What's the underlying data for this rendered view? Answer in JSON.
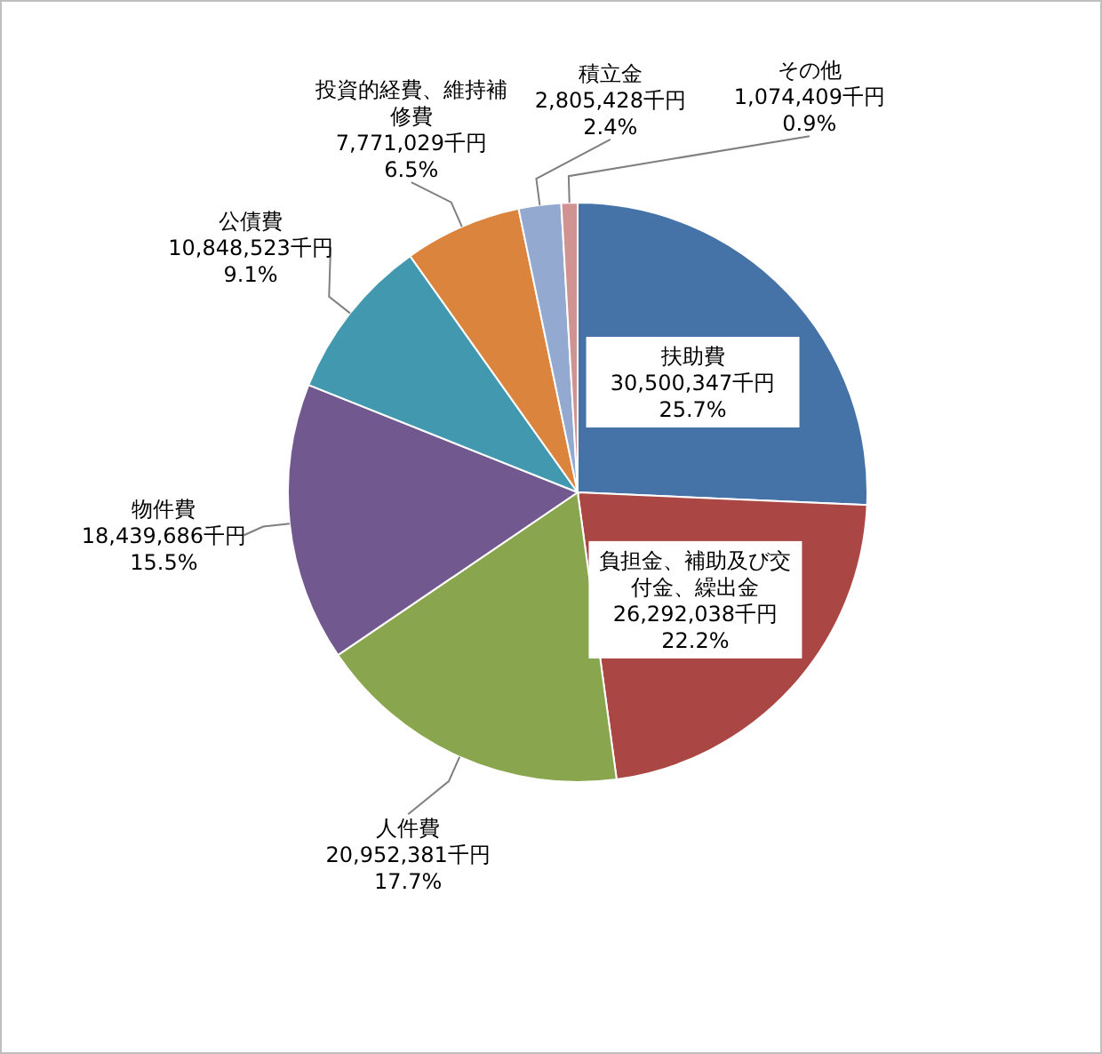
{
  "chart_data": {
    "type": "pie",
    "categories": [
      "扶助費",
      "負担金、補助及び交付金、繰出金",
      "人件費",
      "物件費",
      "公債費",
      "投資的経費、維持補修費",
      "積立金",
      "その他"
    ],
    "values": [
      30500347,
      26292038,
      20952381,
      18439686,
      10848523,
      7771029,
      2805428,
      1074409
    ],
    "value_labels": [
      "30,500,347千円\n25.7%",
      "26,292,038千円\n22.2%",
      "20,952,381千円\n17.7%",
      "18,439,686千円\n15.5%",
      "10,848,523千円\n9.1%",
      "7,771,029千円\n6.5%",
      "2,805,428千円\n2.4%",
      "1,074,409千円\n0.9%"
    ],
    "colors": [
      "#4572a7",
      "#aa4643",
      "#89a54e",
      "#71588f",
      "#4198af",
      "#db843d",
      "#93a9cf",
      "#d19392"
    ]
  }
}
